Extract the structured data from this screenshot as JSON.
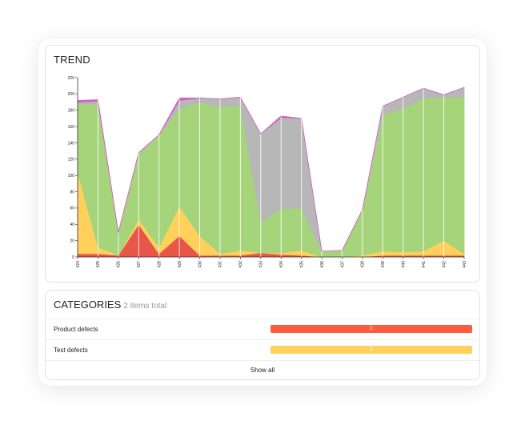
{
  "trend": {
    "title": "TREND",
    "chart_data": {
      "type": "area",
      "stacked": true,
      "categories": [
        "#24",
        "#25",
        "#26",
        "#27",
        "#28",
        "#29",
        "#30",
        "#31",
        "#32",
        "#33",
        "#34",
        "#35",
        "#36",
        "#37",
        "#38",
        "#39",
        "#40",
        "#41",
        "#42",
        "#43"
      ],
      "ylim": [
        0,
        220
      ],
      "yticks": [
        0,
        20,
        40,
        60,
        80,
        100,
        120,
        140,
        160,
        180,
        200,
        220
      ],
      "grid": false,
      "series": [
        {
          "color": "#e8564a",
          "values": [
            4,
            4,
            2,
            40,
            4,
            26,
            2,
            2,
            2,
            5,
            3,
            2,
            0,
            0,
            0,
            2,
            2,
            2,
            2,
            2
          ]
        },
        {
          "color": "#ffd05a",
          "values": [
            100,
            8,
            0,
            6,
            8,
            36,
            24,
            2,
            6,
            0,
            2,
            6,
            0,
            0,
            2,
            5,
            4,
            5,
            18,
            2
          ]
        },
        {
          "color": "#a6d47b",
          "values": [
            84,
            176,
            28,
            80,
            138,
            120,
            164,
            180,
            178,
            38,
            54,
            52,
            7,
            8,
            56,
            168,
            176,
            188,
            176,
            192
          ]
        },
        {
          "color": "#b7b7b7",
          "values": [
            2,
            3,
            0,
            2,
            0,
            10,
            5,
            10,
            10,
            108,
            112,
            110,
            0,
            0,
            0,
            10,
            14,
            12,
            3,
            12
          ]
        },
        {
          "color": "#d45fc4",
          "values": [
            2,
            2,
            0,
            0,
            0,
            3,
            0,
            0,
            0,
            0,
            2,
            0,
            0,
            0,
            0,
            0,
            0,
            0,
            0,
            0
          ]
        }
      ]
    }
  },
  "categories": {
    "title": "CATEGORIES",
    "subtitle": "2 items total",
    "items": [
      {
        "name": "Product defects",
        "count": "1",
        "color": "#ff5b3f"
      },
      {
        "name": "Test defects",
        "count": "3",
        "color": "#ffd05a"
      }
    ],
    "show_all": "Show all"
  }
}
